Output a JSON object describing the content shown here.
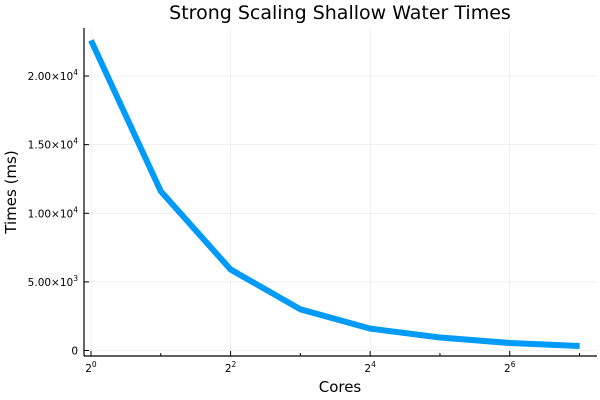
{
  "chart_data": {
    "type": "line",
    "title": "Strong Scaling Shallow Water Times",
    "xlabel": "Cores",
    "ylabel": "Times (ms)",
    "x_scale": "log2",
    "x": [
      1,
      2,
      4,
      8,
      16,
      32,
      64,
      128
    ],
    "series": [
      {
        "values": [
          22600,
          11600,
          5900,
          3000,
          1600,
          950,
          550,
          330
        ],
        "color": "#009af9"
      }
    ],
    "x_ticks": [
      {
        "value": 1,
        "base": "2",
        "exp": "0"
      },
      {
        "value": 4,
        "base": "2",
        "exp": "2"
      },
      {
        "value": 16,
        "base": "2",
        "exp": "4"
      },
      {
        "value": 64,
        "base": "2",
        "exp": "6"
      }
    ],
    "y_ticks": [
      {
        "value": 0,
        "label": "0",
        "mant": "",
        "exp": ""
      },
      {
        "value": 5000,
        "label": "",
        "mant": "5.00×10",
        "exp": "3"
      },
      {
        "value": 10000,
        "label": "",
        "mant": "1.00×10",
        "exp": "4"
      },
      {
        "value": 15000,
        "label": "",
        "mant": "1.50×10",
        "exp": "4"
      },
      {
        "value": 20000,
        "label": "",
        "mant": "2.00×10",
        "exp": "4"
      }
    ],
    "grid": true,
    "legend": "none"
  }
}
